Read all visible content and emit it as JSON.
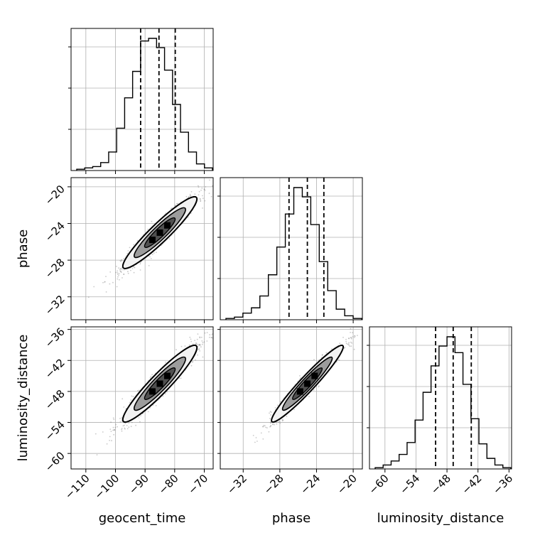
{
  "chart_data": {
    "type": "corner",
    "parameters": [
      {
        "name": "geocent_time",
        "range": [
          -115,
          -67
        ],
        "ticks": [
          -110,
          -100,
          -90,
          -80,
          -70
        ],
        "mean": -85,
        "std": 6.4,
        "quantiles": [
          -91.5,
          -85.3,
          -79.8
        ]
      },
      {
        "name": "phase",
        "range": [
          -34.5,
          -19
        ],
        "ticks": [
          -32,
          -28,
          -24,
          -20
        ],
        "mean": -25.0,
        "std": 2.0,
        "quantiles": [
          -27,
          -25.0,
          -23.2
        ]
      },
      {
        "name": "luminosity_distance",
        "range": [
          -63,
          -35.5
        ],
        "ticks": [
          -60,
          -54,
          -48,
          -42,
          -36
        ],
        "mean": -46.5,
        "std": 3.8,
        "quantiles": [
          -50.2,
          -46.8,
          -43.3
        ]
      }
    ],
    "x_tick_labels": [
      [
        "−110",
        "−100",
        "−90",
        "−80",
        "−70"
      ],
      [
        "−32",
        "−28",
        "−24",
        "−20"
      ],
      [
        "−60",
        "−54",
        "−48",
        "−42",
        "−36"
      ]
    ],
    "y_tick_labels": {
      "phase": [
        "−20",
        "−24",
        "−28",
        "−32"
      ],
      "luminosity_distance": [
        "−36",
        "−42",
        "−48",
        "−54",
        "−60"
      ]
    },
    "correlations": {
      "geocent_time|phase": 0.95,
      "geocent_time|luminosity_distance": 0.95,
      "phase|luminosity_distance": 0.97
    },
    "histograms": {
      "geocent_time": [
        1,
        2,
        3,
        6,
        14,
        32,
        55,
        75,
        98,
        100,
        93,
        76,
        50,
        29,
        14,
        5,
        2
      ],
      "phase": [
        1,
        2,
        5,
        9,
        18,
        34,
        55,
        80,
        100,
        93,
        72,
        44,
        22,
        8,
        3,
        1
      ],
      "luminosity_distance": [
        1,
        3,
        6,
        11,
        20,
        37,
        58,
        78,
        93,
        100,
        88,
        64,
        38,
        19,
        8,
        3,
        1
      ]
    },
    "quantile_lines": "dashed",
    "grid": true
  }
}
